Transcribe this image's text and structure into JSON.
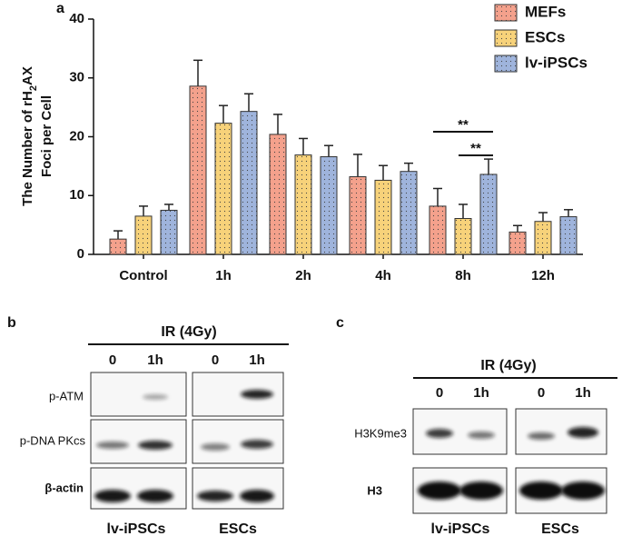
{
  "chart_data": {
    "type": "bar",
    "panel_label": "a",
    "ylabel": [
      "The Number of rH",
      "2",
      "AX"
    ],
    "ylabel2": "Foci per Cell",
    "categories": [
      "Control",
      "1h",
      "2h",
      "4h",
      "8h",
      "12h"
    ],
    "series": [
      {
        "name": "MEFs",
        "color": "#f4a18c",
        "values": [
          2.6,
          28.6,
          20.4,
          13.2,
          8.2,
          3.8
        ],
        "errors": [
          1.4,
          4.4,
          3.4,
          3.8,
          3.0,
          1.1
        ]
      },
      {
        "name": "ESCs",
        "color": "#f7d27a",
        "values": [
          6.5,
          22.3,
          16.9,
          12.6,
          6.1,
          5.6
        ],
        "errors": [
          1.7,
          3.0,
          2.8,
          2.5,
          2.4,
          1.5
        ]
      },
      {
        "name": "lv-iPSCs",
        "color": "#9fb4dc",
        "values": [
          7.5,
          24.3,
          16.6,
          14.1,
          13.6,
          6.4
        ],
        "errors": [
          1.0,
          3.0,
          1.9,
          1.4,
          2.6,
          1.2
        ]
      }
    ],
    "annotations": [
      "**",
      "**"
    ],
    "ylim": [
      0,
      40
    ],
    "yticks": [
      0,
      10,
      20,
      30,
      40
    ],
    "legend": "top-right"
  },
  "panel_b": {
    "label": "b",
    "treatment": "IR (4Gy)",
    "lanes": [
      "0",
      "1h",
      "0",
      "1h"
    ],
    "rows": [
      "p-ATM",
      "p-DNA PKcs",
      "β-actin"
    ],
    "groups": [
      "lv-iPSCs",
      "ESCs"
    ]
  },
  "panel_c": {
    "label": "c",
    "treatment": "IR (4Gy)",
    "lanes": [
      "0",
      "1h",
      "0",
      "1h"
    ],
    "rows": [
      "H3K9me3",
      "H3"
    ],
    "groups": [
      "lv-iPSCs",
      "ESCs"
    ]
  }
}
